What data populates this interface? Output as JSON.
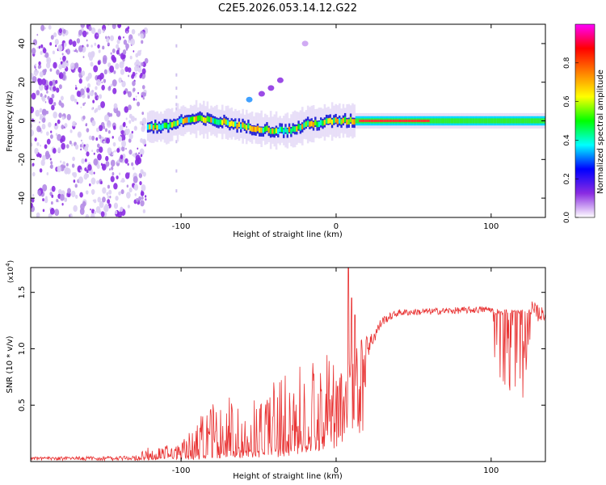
{
  "title": "C2E5.2026.053.14.12.G22",
  "chart_data": [
    {
      "type": "heatmap",
      "xlabel": "Height of straight line (km)",
      "ylabel": "Frequency (Hz)",
      "xlim": [
        -197,
        135
      ],
      "ylim": [
        -50,
        50
      ],
      "xticks": [
        -100,
        0,
        100
      ],
      "yticks": [
        -40,
        -20,
        0,
        20,
        40
      ],
      "noise_region_x": [
        -197,
        -122
      ],
      "carrier_path": [
        {
          "x": -122,
          "y": -3
        },
        {
          "x": -110,
          "y": -3
        },
        {
          "x": -100,
          "y": 0
        },
        {
          "x": -90,
          "y": 1
        },
        {
          "x": -80,
          "y": 0
        },
        {
          "x": -70,
          "y": -1
        },
        {
          "x": -60,
          "y": -3
        },
        {
          "x": -50,
          "y": -4
        },
        {
          "x": -40,
          "y": -5
        },
        {
          "x": -30,
          "y": -5
        },
        {
          "x": -20,
          "y": -2
        },
        {
          "x": -10,
          "y": -1
        },
        {
          "x": 0,
          "y": 0
        },
        {
          "x": 10,
          "y": 0
        },
        {
          "x": 135,
          "y": 0
        }
      ],
      "side_blobs": [
        {
          "x": -56,
          "y": 11
        },
        {
          "x": -48,
          "y": 14
        },
        {
          "x": -42,
          "y": 17
        },
        {
          "x": -36,
          "y": 21
        },
        {
          "x": -20,
          "y": 40
        }
      ],
      "colorbar": {
        "label": "Normalized spectral amplitude",
        "range": [
          0,
          1
        ],
        "ticks": [
          0.0,
          0.2,
          0.4,
          0.6,
          0.8
        ],
        "tick_labels": [
          "0.0",
          "0.2",
          "0.4",
          "0.6",
          "0.8"
        ],
        "colors": [
          "#ffffff",
          "#8a2be2",
          "#0000ff",
          "#00ffff",
          "#00ff00",
          "#ffff00",
          "#ff8000",
          "#ff0000",
          "#ff00ff"
        ]
      }
    },
    {
      "type": "line",
      "xlabel": "Height of straight line (km)",
      "ylabel": "SNR (10 * v/v)",
      "multiplier": "(x10",
      "multiplier_exp": "4",
      "multiplier_close": ")",
      "xlim": [
        -197,
        135
      ],
      "ylim": [
        0,
        1.72
      ],
      "xticks": [
        -100,
        0,
        100
      ],
      "yticks": [
        0.5,
        1.0,
        1.5
      ],
      "ytick_labels": [
        "0.5",
        "1.0",
        "1.5"
      ],
      "series": [
        {
          "name": "SNR",
          "color": "#e83030",
          "envelope": [
            {
              "x": -197,
              "base": 0.03,
              "spike": 0.01
            },
            {
              "x": -130,
              "base": 0.03,
              "spike": 0.02
            },
            {
              "x": -120,
              "base": 0.04,
              "spike": 0.1
            },
            {
              "x": -100,
              "base": 0.05,
              "spike": 0.1
            },
            {
              "x": -90,
              "base": 0.06,
              "spike": 0.35
            },
            {
              "x": -80,
              "base": 0.08,
              "spike": 0.45
            },
            {
              "x": -60,
              "base": 0.1,
              "spike": 0.5
            },
            {
              "x": -40,
              "base": 0.12,
              "spike": 0.6
            },
            {
              "x": -20,
              "base": 0.2,
              "spike": 0.7
            },
            {
              "x": -10,
              "base": 0.3,
              "spike": 0.7
            },
            {
              "x": 0,
              "base": 0.4,
              "spike": 0.5
            },
            {
              "x": 10,
              "base": 0.55,
              "spike": 0.4
            },
            {
              "x": 20,
              "base": 1.0,
              "spike": 0.2
            },
            {
              "x": 30,
              "base": 1.25,
              "spike": 0.08
            },
            {
              "x": 40,
              "base": 1.32,
              "spike": 0.06
            },
            {
              "x": 100,
              "base": 1.35,
              "spike": 0.06
            },
            {
              "x": 104,
              "base": 1.33,
              "spike": 0.8
            },
            {
              "x": 120,
              "base": 1.32,
              "spike": 0.8
            },
            {
              "x": 126,
              "base": 1.33,
              "spike": 0.2
            },
            {
              "x": 135,
              "base": 1.3,
              "spike": 0.1
            }
          ],
          "peaks": [
            {
              "x": 8,
              "y": 1.72
            },
            {
              "x": 10,
              "y": 1.45
            },
            {
              "x": 12,
              "y": 1.3
            }
          ]
        }
      ]
    }
  ]
}
